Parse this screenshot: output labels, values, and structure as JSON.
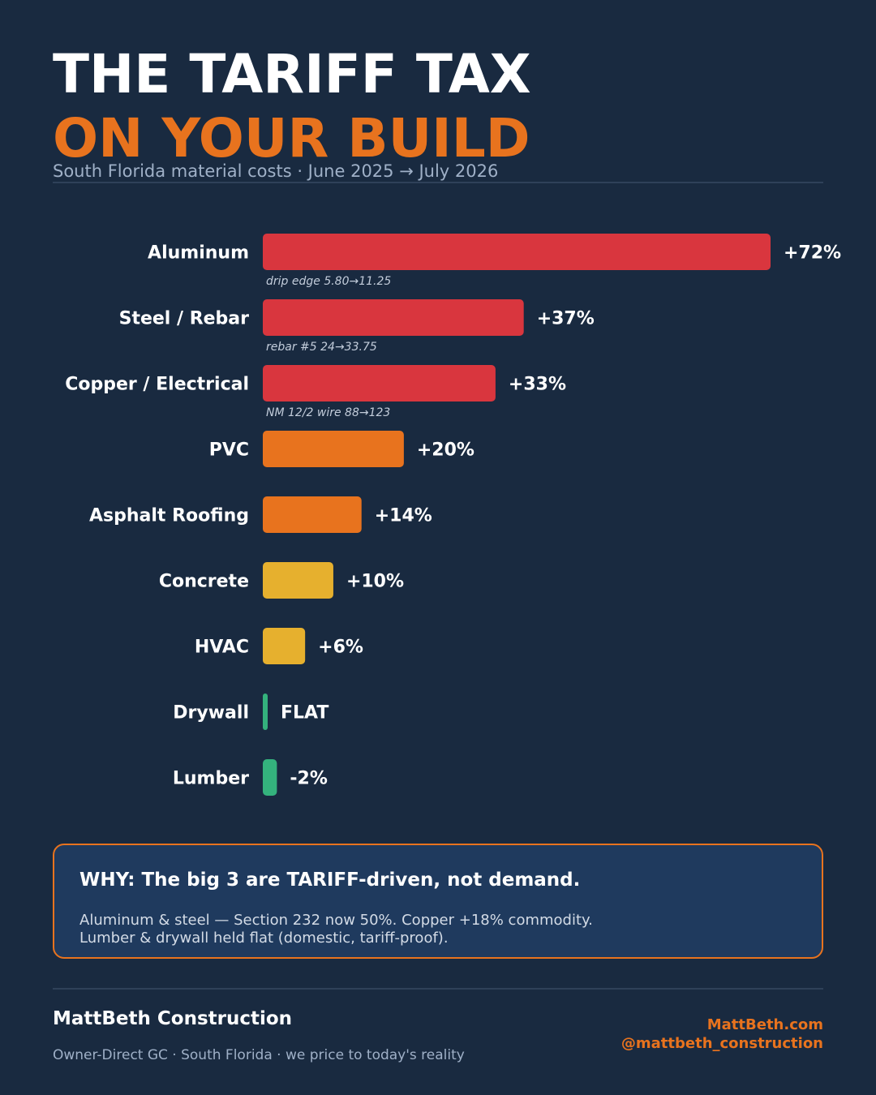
{
  "header": {
    "title_line1": "THE TARIFF TAX",
    "title_line2": "ON YOUR BUILD",
    "subtitle": "South Florida material costs  ·  June 2025 → July 2026"
  },
  "colors": {
    "background": "#192a40",
    "accent_orange": "#e8731e",
    "high_red": "#d9363e",
    "mid_orange": "#e8731e",
    "low_yellow": "#e6b02e",
    "flat_green": "#34b27d",
    "box_fill": "#1f3a5e"
  },
  "chart_data": {
    "type": "bar",
    "orientation": "horizontal",
    "title": "",
    "xlabel": "",
    "ylabel": "",
    "unit": "%",
    "categories": [
      "Aluminum",
      "Steel / Rebar",
      "Copper / Electrical",
      "PVC",
      "Asphalt Roofing",
      "Concrete",
      "HVAC",
      "Drywall",
      "Lumber"
    ],
    "values": [
      72,
      37,
      33,
      20,
      14,
      10,
      6,
      0,
      -2
    ],
    "value_labels": [
      "+72%",
      "+37%",
      "+33%",
      "+20%",
      "+14%",
      "+10%",
      "+6%",
      "FLAT",
      "-2%"
    ],
    "tiers": [
      "high",
      "high",
      "high",
      "mid",
      "mid",
      "low",
      "low",
      "flat",
      "flat"
    ],
    "notes": [
      {
        "item": "drip edge",
        "from": "5.80",
        "to": "11.25"
      },
      {
        "item": "rebar #5",
        "from": "24",
        "to": "33.75"
      },
      {
        "item": "NM 12/2 wire",
        "from": "88",
        "to": "123"
      },
      null,
      null,
      null,
      null,
      null,
      null
    ],
    "arrow": "→",
    "xlim": [
      0,
      72
    ],
    "grid": false,
    "legend": "none"
  },
  "why": {
    "heading": "WHY:  The big 3 are TARIFF-driven, not demand.",
    "line1": "Aluminum & steel — Section 232 now 50%.  Copper +18% commodity.",
    "line2": "Lumber & drywall held flat (domestic, tariff-proof)."
  },
  "footer": {
    "brand": "MattBeth Construction",
    "tagline": "Owner-Direct GC · South Florida · we price to today's reality",
    "site": "MattBeth.com",
    "handle": "@mattbeth_construction"
  }
}
